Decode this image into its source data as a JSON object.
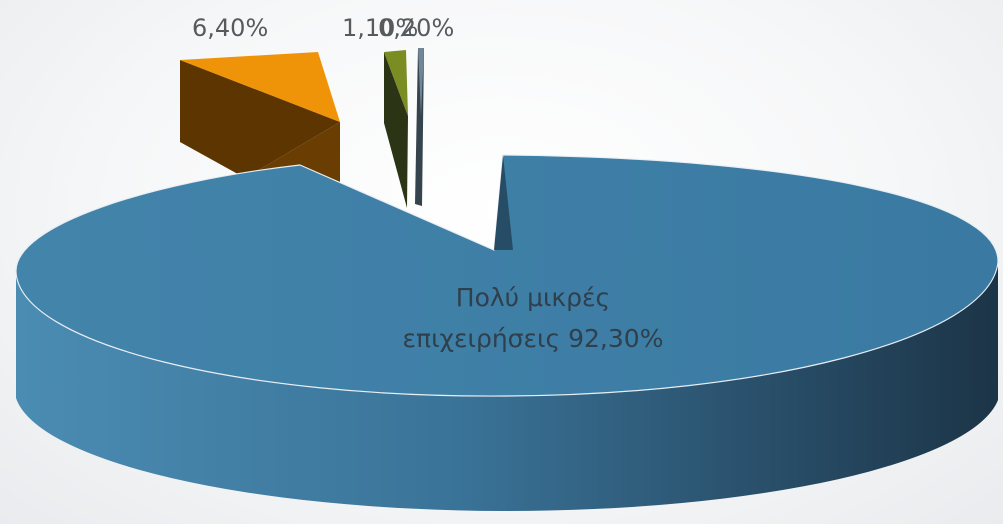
{
  "chart_data": {
    "type": "pie",
    "title": "",
    "three_d": true,
    "exploded": true,
    "legend": "none",
    "slices": [
      {
        "name": "Πολύ μικρές επιχειρήσεις",
        "value": 92.3,
        "label": "92,30%",
        "color": "#3d7fa6"
      },
      {
        "name": "",
        "value": 6.4,
        "label": "6,40%",
        "color": "#ef9408"
      },
      {
        "name": "",
        "value": 1.1,
        "label": "1,10%",
        "color": "#7b8c23"
      },
      {
        "name": "",
        "value": 0.2,
        "label": "0,20%",
        "color": "#6f8796"
      }
    ],
    "data_labels": {
      "main_line1": "Πολύ μικρές",
      "main_line2": "επιχειρήσεις 92,30%",
      "slice2": "6,40%",
      "slice3": "1,10%",
      "slice4": "0,20%"
    }
  }
}
